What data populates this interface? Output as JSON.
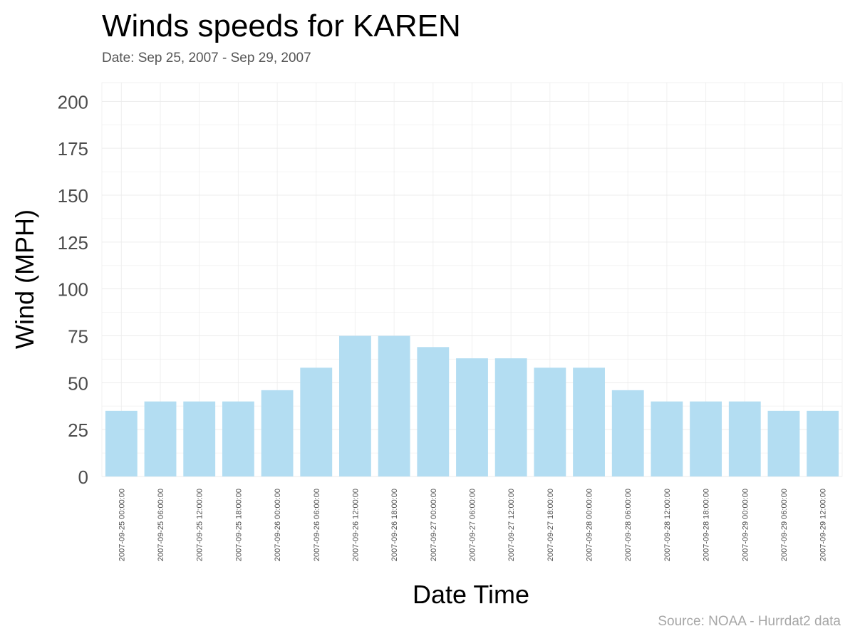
{
  "chart_data": {
    "type": "bar",
    "title": "Winds speeds for KAREN",
    "subtitle": "Date:  Sep 25, 2007 - Sep 29, 2007",
    "caption": "Source: NOAA - Hurrdat2 data",
    "xlabel": "Date Time",
    "ylabel": "Wind (MPH)",
    "ylim": [
      0,
      210
    ],
    "yticks": [
      0,
      25,
      50,
      75,
      100,
      125,
      150,
      175,
      200
    ],
    "grid": true,
    "categories": [
      "2007-09-25 00:00:00",
      "2007-09-25 06:00:00",
      "2007-09-25 12:00:00",
      "2007-09-25 18:00:00",
      "2007-09-26 00:00:00",
      "2007-09-26 06:00:00",
      "2007-09-26 12:00:00",
      "2007-09-26 18:00:00",
      "2007-09-27 00:00:00",
      "2007-09-27 06:00:00",
      "2007-09-27 12:00:00",
      "2007-09-27 18:00:00",
      "2007-09-28 00:00:00",
      "2007-09-28 06:00:00",
      "2007-09-28 12:00:00",
      "2007-09-28 18:00:00",
      "2007-09-29 00:00:00",
      "2007-09-29 06:00:00",
      "2007-09-29 12:00:00"
    ],
    "values": [
      35,
      40,
      40,
      40,
      46,
      58,
      75,
      75,
      69,
      63,
      63,
      58,
      58,
      46,
      40,
      40,
      40,
      35,
      35
    ],
    "colors": {
      "bar": "#b3ddf2",
      "grid": "#ebebeb",
      "tick_text": "#4d4d4d"
    }
  }
}
